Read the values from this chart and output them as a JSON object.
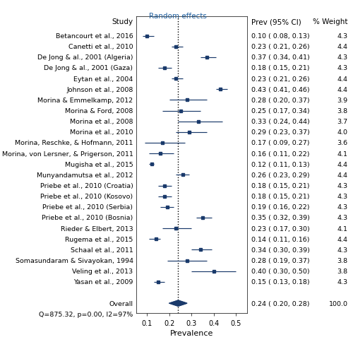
{
  "studies": [
    {
      "name": "Betancourt et al., 2016",
      "prev": 0.1,
      "ci_lo": 0.08,
      "ci_hi": 0.13,
      "weight": 4.3
    },
    {
      "name": "Canetti et al., 2010",
      "prev": 0.23,
      "ci_lo": 0.21,
      "ci_hi": 0.26,
      "weight": 4.4
    },
    {
      "name": "De Jong & al., 2001 (Algeria)",
      "prev": 0.37,
      "ci_lo": 0.34,
      "ci_hi": 0.41,
      "weight": 4.3
    },
    {
      "name": "De Jong & al., 2001 (Gaza)",
      "prev": 0.18,
      "ci_lo": 0.15,
      "ci_hi": 0.21,
      "weight": 4.3
    },
    {
      "name": "Eytan et al., 2004",
      "prev": 0.23,
      "ci_lo": 0.21,
      "ci_hi": 0.26,
      "weight": 4.4
    },
    {
      "name": "Johnson et al., 2008",
      "prev": 0.43,
      "ci_lo": 0.41,
      "ci_hi": 0.46,
      "weight": 4.4
    },
    {
      "name": "Morina & Emmelkamp, 2012",
      "prev": 0.28,
      "ci_lo": 0.2,
      "ci_hi": 0.37,
      "weight": 3.9
    },
    {
      "name": "Morina & Ford, 2008",
      "prev": 0.25,
      "ci_lo": 0.17,
      "ci_hi": 0.34,
      "weight": 3.8
    },
    {
      "name": "Morina et al., 2008",
      "prev": 0.33,
      "ci_lo": 0.24,
      "ci_hi": 0.44,
      "weight": 3.7
    },
    {
      "name": "Morina et al., 2010",
      "prev": 0.29,
      "ci_lo": 0.23,
      "ci_hi": 0.37,
      "weight": 4.0
    },
    {
      "name": "Morina, Reschke, & Hofmann, 2011",
      "prev": 0.17,
      "ci_lo": 0.09,
      "ci_hi": 0.27,
      "weight": 3.6
    },
    {
      "name": "Morina, von Lersner, & Prigerson, 2011",
      "prev": 0.16,
      "ci_lo": 0.11,
      "ci_hi": 0.22,
      "weight": 4.1
    },
    {
      "name": "Mugisha et al., 2015",
      "prev": 0.12,
      "ci_lo": 0.11,
      "ci_hi": 0.13,
      "weight": 4.4
    },
    {
      "name": "Munyandamutsa et al., 2012",
      "prev": 0.26,
      "ci_lo": 0.23,
      "ci_hi": 0.29,
      "weight": 4.4
    },
    {
      "name": "Priebe et al., 2010 (Croatia)",
      "prev": 0.18,
      "ci_lo": 0.15,
      "ci_hi": 0.21,
      "weight": 4.3
    },
    {
      "name": "Priebe et al., 2010 (Kosovo)",
      "prev": 0.18,
      "ci_lo": 0.15,
      "ci_hi": 0.21,
      "weight": 4.3
    },
    {
      "name": "Priebe et al., 2010 (Serbia)",
      "prev": 0.19,
      "ci_lo": 0.16,
      "ci_hi": 0.22,
      "weight": 4.3
    },
    {
      "name": "Priebe et al., 2010 (Bosnia)",
      "prev": 0.35,
      "ci_lo": 0.32,
      "ci_hi": 0.39,
      "weight": 4.3
    },
    {
      "name": "Rieder & Elbert, 2013",
      "prev": 0.23,
      "ci_lo": 0.17,
      "ci_hi": 0.3,
      "weight": 4.1
    },
    {
      "name": "Rugema et al., 2015",
      "prev": 0.14,
      "ci_lo": 0.11,
      "ci_hi": 0.16,
      "weight": 4.4
    },
    {
      "name": "Schaal et al., 2011",
      "prev": 0.34,
      "ci_lo": 0.3,
      "ci_hi": 0.39,
      "weight": 4.3
    },
    {
      "name": "Somasundaram & Sivayokan, 1994",
      "prev": 0.28,
      "ci_lo": 0.19,
      "ci_hi": 0.37,
      "weight": 3.8
    },
    {
      "name": "Veling et al., 2013",
      "prev": 0.4,
      "ci_lo": 0.3,
      "ci_hi": 0.5,
      "weight": 3.8
    },
    {
      "name": "Yasan et al., 2009",
      "prev": 0.15,
      "ci_lo": 0.13,
      "ci_hi": 0.18,
      "weight": 4.3
    }
  ],
  "overall": {
    "prev": 0.24,
    "ci_lo": 0.2,
    "ci_hi": 0.28,
    "weight": 100.0
  },
  "overall_label": "Overall",
  "q_stat": "Q=875.32, p=0.00, I2=97%",
  "random_effects_label": "Random effects",
  "dashed_line_x": 0.24,
  "xlim": [
    0.05,
    0.55
  ],
  "xticks": [
    0.1,
    0.2,
    0.3,
    0.4,
    0.5
  ],
  "xlabel": "Prevalence",
  "col_prev_label": "Prev (95% CI)",
  "col_weight_label": "% Weight",
  "study_col_label": "Study",
  "color_main": "#1a3a6b",
  "color_diamond": "#1a3a6b",
  "color_random_effects": "#2060a0",
  "background_color": "#ffffff",
  "fontsize_study": 6.8,
  "fontsize_header": 7.5,
  "fontsize_stats": 6.8,
  "fontsize_xtick": 7.0,
  "fontsize_xlabel": 8.0
}
